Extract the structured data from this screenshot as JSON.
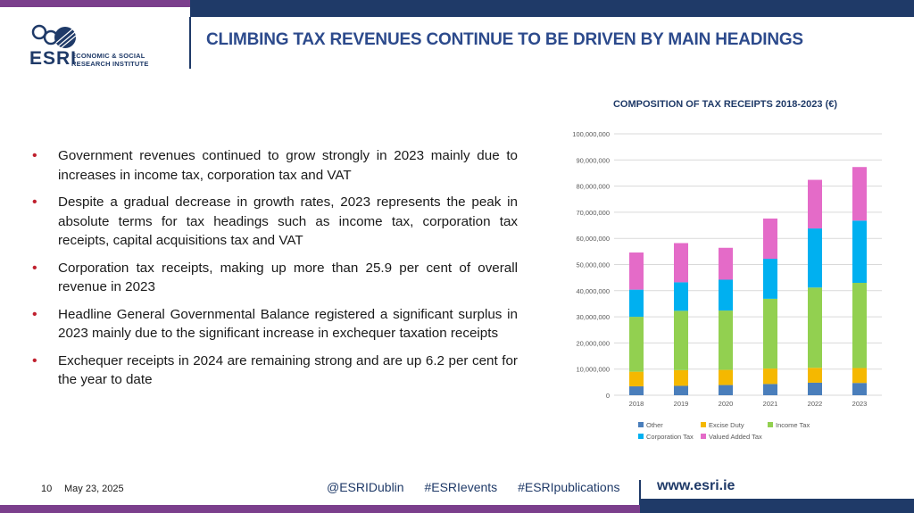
{
  "header": {
    "title": "CLIMBING TAX REVENUES CONTINUE TO BE DRIVEN BY MAIN HEADINGS",
    "logo_text": [
      "ECONOMIC & SOCIAL",
      "RESEARCH INSTITUTE"
    ],
    "logo_mark": "ESRI"
  },
  "bullets": [
    "Government revenues continued to grow strongly in 2023 mainly due to increases in income tax, corporation tax and VAT",
    "Despite a gradual decrease in growth rates, 2023 represents the peak in absolute terms for tax headings such as income tax, corporation tax receipts, capital acquisitions tax and VAT",
    "Corporation tax receipts, making up more than 25.9 per cent of overall revenue in 2023",
    "Headline General Governmental Balance registered a significant surplus in 2023 mainly due to the significant increase in exchequer taxation receipts",
    "Exchequer receipts in 2024 are remaining strong and are up 6.2 per cent for the year to date"
  ],
  "chart_data": {
    "type": "bar",
    "stacked": true,
    "title": "COMPOSITION OF TAX RECEIPTS 2018-2023 (€)",
    "categories": [
      "2018",
      "2019",
      "2020",
      "2021",
      "2022",
      "2023"
    ],
    "series": [
      {
        "name": "Other",
        "color": "#4a7ebb",
        "values": [
          3400000,
          3600000,
          3900000,
          4300000,
          4800000,
          4700000
        ]
      },
      {
        "name": "Excise Duty",
        "color": "#f5b800",
        "values": [
          5600000,
          6000000,
          5800000,
          5900000,
          5700000,
          5700000
        ]
      },
      {
        "name": "Income Tax",
        "color": "#92d050",
        "values": [
          21000000,
          22700000,
          22700000,
          26700000,
          30700000,
          32600000
        ]
      },
      {
        "name": "Corporation Tax",
        "color": "#00b0f0",
        "values": [
          10400000,
          10900000,
          11800000,
          15300000,
          22600000,
          23800000
        ]
      },
      {
        "name": "Valued Added Tax",
        "color": "#e46bc8",
        "values": [
          14200000,
          15000000,
          12200000,
          15400000,
          18600000,
          20500000
        ]
      }
    ],
    "ylim": [
      0,
      100000000
    ],
    "yticks": [
      "0",
      "10,000,000",
      "20,000,000",
      "30,000,000",
      "40,000,000",
      "50,000,000",
      "60,000,000",
      "70,000,000",
      "80,000,000",
      "90,000,000",
      "100,000,000"
    ],
    "grid": true,
    "legend_position": "bottom"
  },
  "footer": {
    "page_number": "10",
    "date": "May 23, 2025",
    "social": [
      "@ESRIDublin",
      "#ESRIevents",
      "#ESRIpublications"
    ],
    "website": "www.esri.ie"
  },
  "colors": {
    "navy": "#1f3a68",
    "purple": "#7b3f8c",
    "title_blue": "#2c4a8c",
    "bullet_red": "#c0202e"
  }
}
